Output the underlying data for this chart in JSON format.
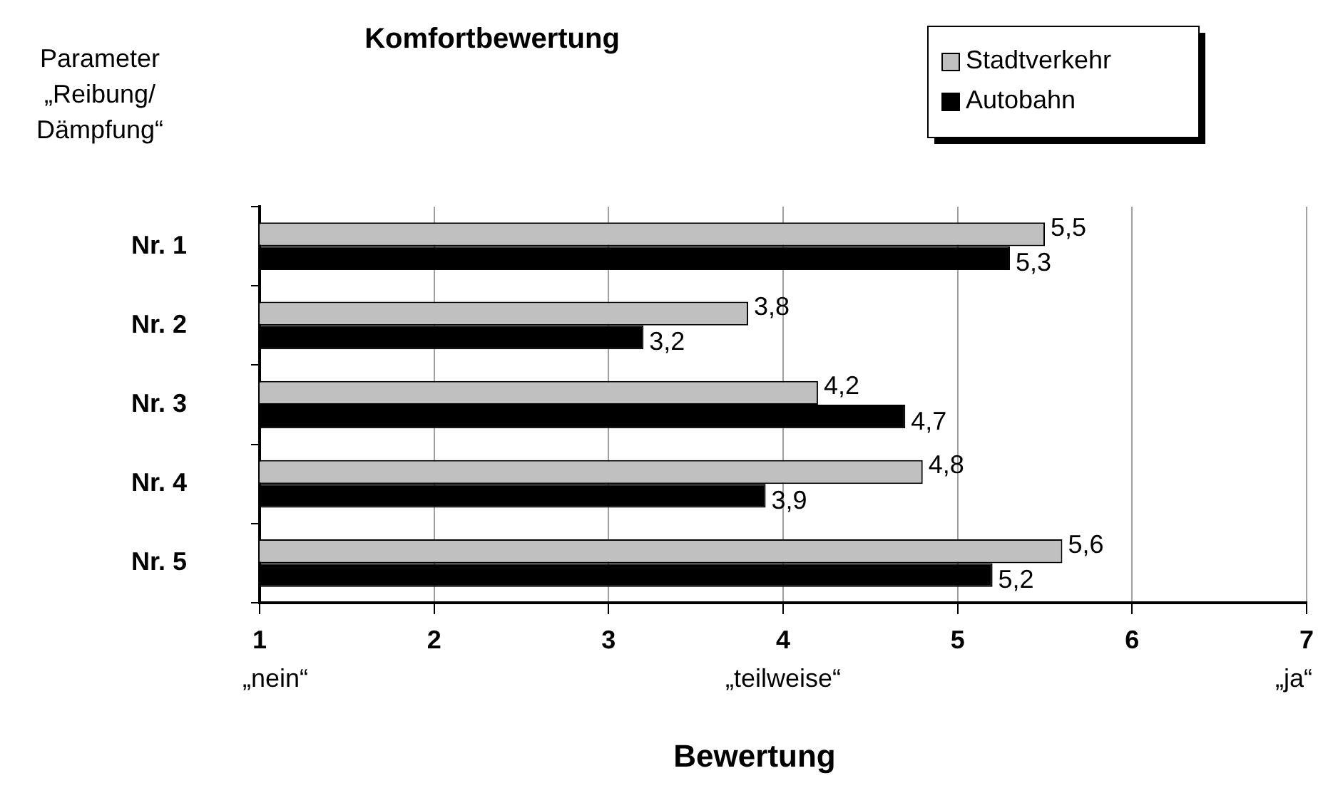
{
  "chart_data": {
    "type": "bar",
    "orientation": "horizontal",
    "title": "Komfortbewertung",
    "xlabel": "Bewertung",
    "ylabel": "Parameter „Reibung/ Dämpfung“",
    "categories": [
      "Nr. 1",
      "Nr. 2",
      "Nr. 3",
      "Nr. 4",
      "Nr. 5"
    ],
    "series": [
      {
        "name": "Stadtverkehr",
        "color": "#c0c0c0",
        "values": [
          5.5,
          3.8,
          4.2,
          4.8,
          5.6
        ],
        "value_labels": [
          "5,5",
          "3,8",
          "4,2",
          "4,8",
          "5,6"
        ]
      },
      {
        "name": "Autobahn",
        "color": "#000000",
        "values": [
          5.3,
          3.2,
          4.7,
          3.9,
          5.2
        ],
        "value_labels": [
          "5,3",
          "3,2",
          "4,7",
          "3,9",
          "5,2"
        ]
      }
    ],
    "xlim": [
      1,
      7
    ],
    "xticks": [
      1,
      2,
      3,
      4,
      5,
      6,
      7
    ],
    "grid": "x",
    "legend": "top right",
    "annotations": [
      "„nein“",
      "„teilweise“",
      "„ja“"
    ]
  }
}
